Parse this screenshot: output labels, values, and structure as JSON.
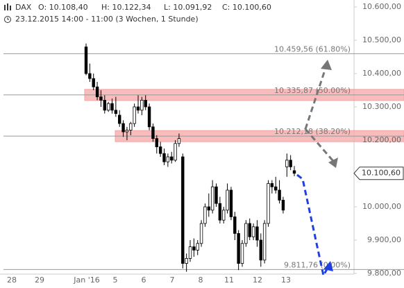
{
  "chart_data": {
    "type": "candlestick",
    "symbol": "DAX",
    "open": "O: 10.108,40",
    "high": "H: 10.122,34",
    "low": "L: 10.091,92",
    "close": "C: 10.100,60",
    "period": "23.12.2015 14:00 - 11:00 (3 Wochen, 1 Stunde)",
    "ylim": [
      9800,
      10600
    ],
    "yticks": [
      {
        "value": 10600,
        "label": "10.600,00"
      },
      {
        "value": 10500,
        "label": "10.500,00"
      },
      {
        "value": 10400,
        "label": "10.400,00"
      },
      {
        "value": 10300,
        "label": "10.300,00"
      },
      {
        "value": 10200,
        "label": "10.200,00"
      },
      {
        "value": 10000,
        "label": "10.000,00"
      },
      {
        "value": 9900,
        "label": "9.900,00"
      },
      {
        "value": 9800,
        "label": "9.800,00"
      }
    ],
    "xticks": [
      "28",
      "29",
      "Jan '16",
      "5",
      "6",
      "7",
      "8",
      "11",
      "12",
      "13"
    ],
    "fib_levels": [
      {
        "value": 10459.56,
        "label": "10.459,56 (61.80%)",
        "highlighted": false
      },
      {
        "value": 10335.87,
        "label": "10.335,87 (50.00%)",
        "highlighted": true
      },
      {
        "value": 10212.18,
        "label": "10.212,18 (38.20%)",
        "highlighted": true
      },
      {
        "value": 9811.76,
        "label": "9.811,76 (0.00%)",
        "highlighted": false
      }
    ],
    "last_price": {
      "value": 10100.6,
      "label": "10.100,60"
    },
    "candles": [
      [
        10480,
        10490,
        10395,
        10400
      ],
      [
        10400,
        10430,
        10375,
        10385
      ],
      [
        10385,
        10400,
        10350,
        10360
      ],
      [
        10360,
        10375,
        10320,
        10330
      ],
      [
        10330,
        10350,
        10300,
        10320
      ],
      [
        10320,
        10335,
        10280,
        10290
      ],
      [
        10290,
        10315,
        10285,
        10310
      ],
      [
        10310,
        10325,
        10280,
        10290
      ],
      [
        10290,
        10330,
        10270,
        10280
      ],
      [
        10275,
        10290,
        10240,
        10250
      ],
      [
        10250,
        10260,
        10210,
        10225
      ],
      [
        10225,
        10240,
        10200,
        10230
      ],
      [
        10230,
        10255,
        10215,
        10250
      ],
      [
        10250,
        10310,
        10240,
        10300
      ],
      [
        10300,
        10335,
        10280,
        10290
      ],
      [
        10290,
        10330,
        10275,
        10320
      ],
      [
        10320,
        10335,
        10290,
        10300
      ],
      [
        10300,
        10310,
        10230,
        10240
      ],
      [
        10240,
        10250,
        10195,
        10205
      ],
      [
        10205,
        10215,
        10160,
        10180
      ],
      [
        10180,
        10195,
        10150,
        10160
      ],
      [
        10160,
        10175,
        10125,
        10135
      ],
      [
        10135,
        10160,
        10120,
        10150
      ],
      [
        10150,
        10165,
        10130,
        10140
      ],
      [
        10140,
        10200,
        10135,
        10190
      ],
      [
        10190,
        10220,
        10180,
        10205
      ],
      [
        10150,
        10160,
        9815,
        9830
      ],
      [
        9830,
        9860,
        9805,
        9845
      ],
      [
        9845,
        9900,
        9835,
        9880
      ],
      [
        9880,
        9905,
        9850,
        9870
      ],
      [
        9870,
        9900,
        9855,
        9890
      ],
      [
        9890,
        9960,
        9880,
        9950
      ],
      [
        9950,
        10010,
        9940,
        10000
      ],
      [
        10000,
        10040,
        9970,
        9990
      ],
      [
        9990,
        10080,
        9980,
        10060
      ],
      [
        10060,
        10070,
        10000,
        10010
      ],
      [
        10010,
        10030,
        9950,
        9960
      ],
      [
        9960,
        10000,
        9950,
        9990
      ],
      [
        9990,
        10070,
        9980,
        10050
      ],
      [
        10050,
        10060,
        9960,
        9970
      ],
      [
        9970,
        9985,
        9900,
        9920
      ],
      [
        9920,
        9930,
        9810,
        9830
      ],
      [
        9830,
        9900,
        9820,
        9890
      ],
      [
        9890,
        9960,
        9880,
        9950
      ],
      [
        9950,
        9965,
        9900,
        9910
      ],
      [
        9910,
        9950,
        9900,
        9940
      ],
      [
        9940,
        9960,
        9880,
        9900
      ],
      [
        9900,
        9920,
        9820,
        9840
      ],
      [
        9840,
        9960,
        9830,
        9950
      ],
      [
        9950,
        10080,
        9940,
        10070
      ],
      [
        10070,
        10080,
        10040,
        10060
      ],
      [
        10060,
        10090,
        10040,
        10050
      ],
      [
        10050,
        10080,
        10010,
        10020
      ],
      [
        10020,
        10030,
        9980,
        9990
      ],
      [
        10120,
        10160,
        10090,
        10140
      ],
      [
        10140,
        10155,
        10110,
        10120
      ],
      [
        10108.4,
        10122.34,
        10091.92,
        10100.6
      ]
    ]
  }
}
